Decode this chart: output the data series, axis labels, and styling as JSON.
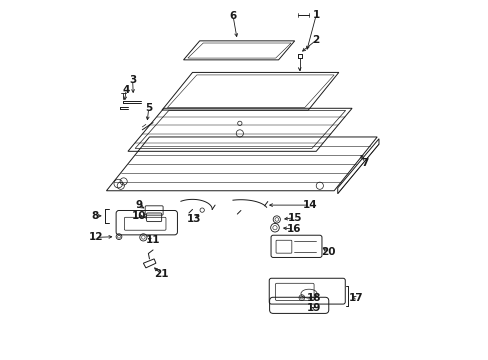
{
  "bg_color": "#ffffff",
  "line_color": "#1a1a1a",
  "figsize": [
    4.89,
    3.6
  ],
  "dpi": 100,
  "lw": 0.7,
  "fs": 7.5
}
